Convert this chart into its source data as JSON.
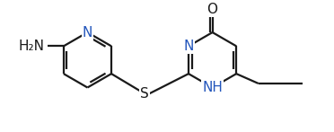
{
  "bg_color": "#ffffff",
  "line_color": "#1a1a1a",
  "n_color": "#2255bb",
  "bond_width": 1.6,
  "font_size": 11,
  "figsize": [
    3.72,
    1.47
  ],
  "dpi": 100,
  "xlim": [
    0,
    10
  ],
  "ylim": [
    0,
    4
  ]
}
